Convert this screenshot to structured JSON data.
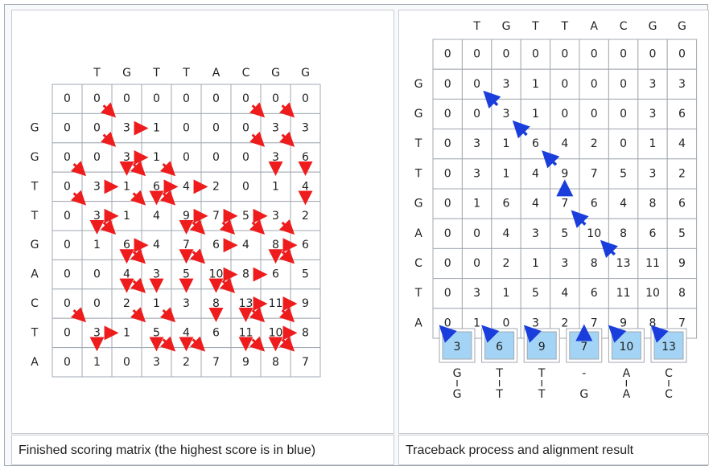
{
  "left": {
    "col_headers": [
      "T",
      "G",
      "T",
      "T",
      "A",
      "C",
      "G",
      "G"
    ],
    "row_headers": [
      "G",
      "G",
      "T",
      "T",
      "G",
      "A",
      "C",
      "T",
      "A"
    ],
    "matrix": [
      [
        0,
        0,
        0,
        0,
        0,
        0,
        0,
        0,
        0
      ],
      [
        0,
        0,
        3,
        1,
        0,
        0,
        0,
        3,
        3
      ],
      [
        0,
        0,
        3,
        1,
        0,
        0,
        0,
        3,
        6
      ],
      [
        0,
        3,
        1,
        6,
        4,
        2,
        0,
        1,
        4
      ],
      [
        0,
        3,
        1,
        4,
        9,
        7,
        5,
        3,
        2
      ],
      [
        0,
        1,
        6,
        4,
        7,
        6,
        4,
        8,
        6
      ],
      [
        0,
        0,
        4,
        3,
        5,
        10,
        8,
        6,
        5
      ],
      [
        0,
        0,
        2,
        1,
        3,
        8,
        13,
        11,
        9
      ],
      [
        0,
        3,
        1,
        5,
        4,
        6,
        11,
        10,
        8
      ],
      [
        0,
        1,
        0,
        3,
        2,
        7,
        9,
        8,
        7
      ]
    ],
    "highlight": [
      7,
      6
    ],
    "highlight_color": "#0aa3e0",
    "arrow_color": "#ee1c1c",
    "caption": "Finished scoring matrix (the highest score is in blue)"
  },
  "right": {
    "col_headers": [
      "T",
      "G",
      "T",
      "T",
      "A",
      "C",
      "G",
      "G"
    ],
    "row_headers": [
      "G",
      "G",
      "T",
      "T",
      "G",
      "A",
      "C",
      "T",
      "A"
    ],
    "matrix": [
      [
        0,
        0,
        0,
        0,
        0,
        0,
        0,
        0,
        0
      ],
      [
        0,
        0,
        3,
        1,
        0,
        0,
        0,
        3,
        3
      ],
      [
        0,
        0,
        3,
        1,
        0,
        0,
        0,
        3,
        6
      ],
      [
        0,
        3,
        1,
        6,
        4,
        2,
        0,
        1,
        4
      ],
      [
        0,
        3,
        1,
        4,
        9,
        7,
        5,
        3,
        2
      ],
      [
        0,
        1,
        6,
        4,
        7,
        6,
        4,
        8,
        6
      ],
      [
        0,
        0,
        4,
        3,
        5,
        10,
        8,
        6,
        5
      ],
      [
        0,
        0,
        2,
        1,
        3,
        8,
        13,
        11,
        9
      ],
      [
        0,
        3,
        1,
        5,
        4,
        6,
        11,
        10,
        8
      ],
      [
        0,
        1,
        0,
        3,
        2,
        7,
        9,
        8,
        7
      ]
    ],
    "path_cells": [
      [
        2,
        2
      ],
      [
        3,
        3
      ],
      [
        4,
        4
      ],
      [
        5,
        4
      ],
      [
        6,
        5
      ],
      [
        7,
        6
      ]
    ],
    "start_cell": [
      1,
      1
    ],
    "start_color": "#ffb300",
    "path_color": "#a3d4f5",
    "arrow_color": "#1a3edb",
    "trace_boxes": [
      {
        "value": "3",
        "top": "G",
        "bottom": "G",
        "dir": "diag"
      },
      {
        "value": "6",
        "top": "T",
        "bottom": "T",
        "dir": "diag"
      },
      {
        "value": "9",
        "top": "T",
        "bottom": "T",
        "dir": "diag"
      },
      {
        "value": "7",
        "top": "-",
        "bottom": "G",
        "dir": "up"
      },
      {
        "value": "10",
        "top": "A",
        "bottom": "A",
        "dir": "diag"
      },
      {
        "value": "13",
        "top": "C",
        "bottom": "C",
        "dir": "diag"
      }
    ],
    "caption": "Traceback process and alignment result"
  }
}
